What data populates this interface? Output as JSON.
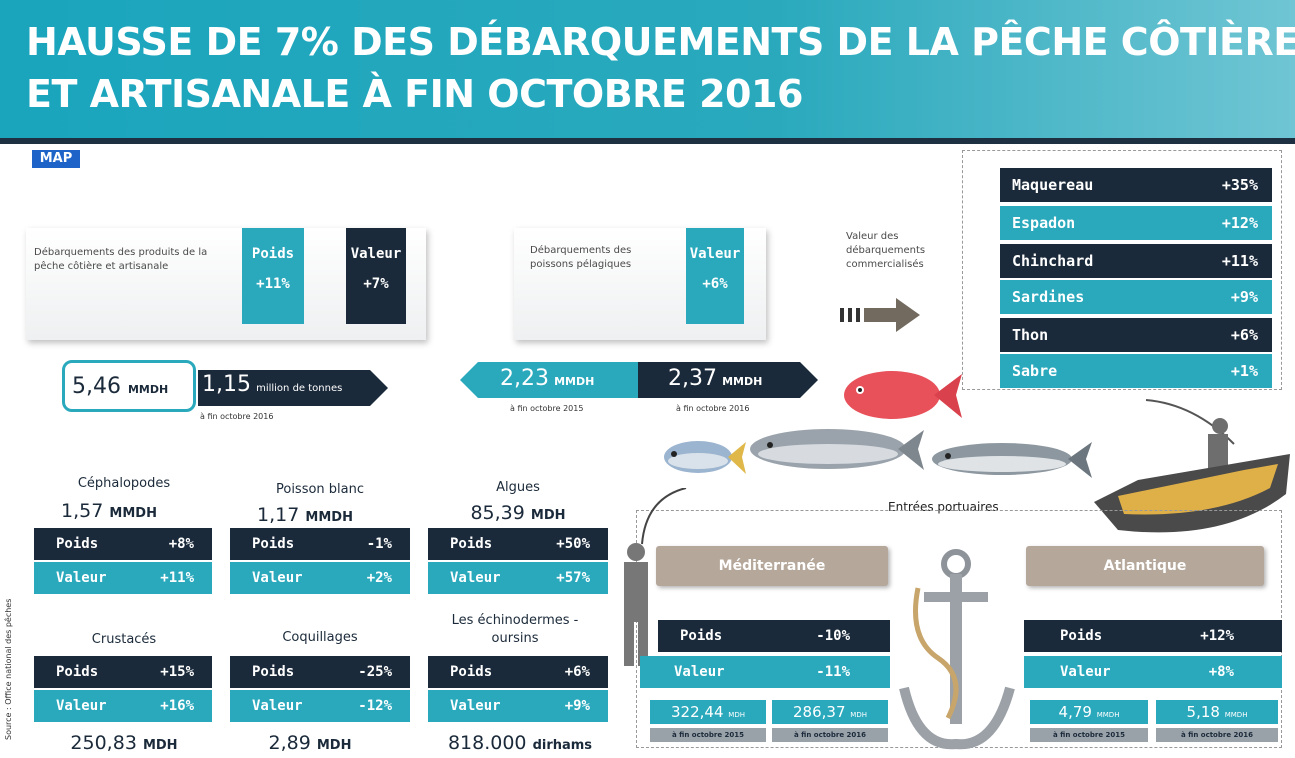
{
  "title": {
    "line1": "HAUSSE DE 7% DES DÉBARQUEMENTS DE LA PÊCHE CÔTIÈRE",
    "line2": "ET ARTISANALE À FIN OCTOBRE 2016"
  },
  "logo": "MAP",
  "coastal": {
    "description": "Débarquements des produits de la pêche côtière et artisanale",
    "weight_label": "Poids",
    "weight_value": "+11%",
    "value_label": "Valeur",
    "value_value": "+7%",
    "amount": "5,46",
    "amount_unit": "MMDH",
    "tonnage": "1,15",
    "tonnage_unit": "million de tonnes",
    "caption": "à fin octobre 2016"
  },
  "pelagic": {
    "description": "Débarquements des poissons pélagiques",
    "value_label": "Valeur",
    "value_value": "+6%",
    "amount_2015": "2,23",
    "amount_2016": "2,37",
    "unit": "MMDH",
    "caption_2015": "à fin octobre 2015",
    "caption_2016": "à fin octobre 2016"
  },
  "commercial": {
    "label": "Valeur des débarquements commercialisés",
    "species": [
      {
        "name": "Maquereau",
        "value": "+35%"
      },
      {
        "name": "Espadon",
        "value": "+12%"
      },
      {
        "name": "Chinchard",
        "value": "+11%"
      },
      {
        "name": "Sardines",
        "value": "+9%"
      },
      {
        "name": "Thon",
        "value": "+6%"
      },
      {
        "name": "Sabre",
        "value": "+1%"
      }
    ]
  },
  "groups": [
    {
      "title": "Céphalopodes",
      "amount": "1,57",
      "unit": "MMDH",
      "weight_label": "Poids",
      "weight": "+8%",
      "value_label": "Valeur",
      "value": "+11%"
    },
    {
      "title": "Poisson blanc",
      "amount": "1,17",
      "unit": "MMDH",
      "weight_label": "Poids",
      "weight": "-1%",
      "value_label": "Valeur",
      "value": "+2%"
    },
    {
      "title": "Algues",
      "amount": "85,39",
      "unit": "MDH",
      "weight_label": "Poids",
      "weight": "+50%",
      "value_label": "Valeur",
      "value": "+57%"
    },
    {
      "title": "Crustacés",
      "amount": "250,83",
      "unit": "MDH",
      "weight_label": "Poids",
      "weight": "+15%",
      "value_label": "Valeur",
      "value": "+16%"
    },
    {
      "title": "Coquillages",
      "amount": "2,89",
      "unit": "MDH",
      "weight_label": "Poids",
      "weight": "-25%",
      "value_label": "Valeur",
      "value": "-12%"
    },
    {
      "title": "Les échinodermes -oursins",
      "amount": "818.000",
      "unit": "dirhams",
      "weight_label": "Poids",
      "weight": "+6%",
      "value_label": "Valeur",
      "value": "+9%"
    }
  ],
  "ports": {
    "label": "Entrées portuaires",
    "med": {
      "name": "Méditerranée",
      "weight_label": "Poids",
      "weight": "-10%",
      "value_label": "Valeur",
      "value": "-11%",
      "amount_2015": "322,44",
      "amount_2016": "286,37",
      "unit": "MDH",
      "caption_2015": "à fin octobre 2015",
      "caption_2016": "à fin octobre 2016"
    },
    "atl": {
      "name": "Atlantique",
      "weight_label": "Poids",
      "weight": "+12%",
      "value_label": "Valeur",
      "value": "+8%",
      "amount_2015": "4,79",
      "amount_2016": "5,18",
      "unit": "MMDH",
      "caption_2015": "à fin octobre 2015",
      "caption_2016": "à fin octobre 2016"
    }
  },
  "source": "Source : Office national des pêches",
  "colors": {
    "teal": "#2aa9bd",
    "navy": "#1b2a3a",
    "taupe": "#b5a79a"
  }
}
